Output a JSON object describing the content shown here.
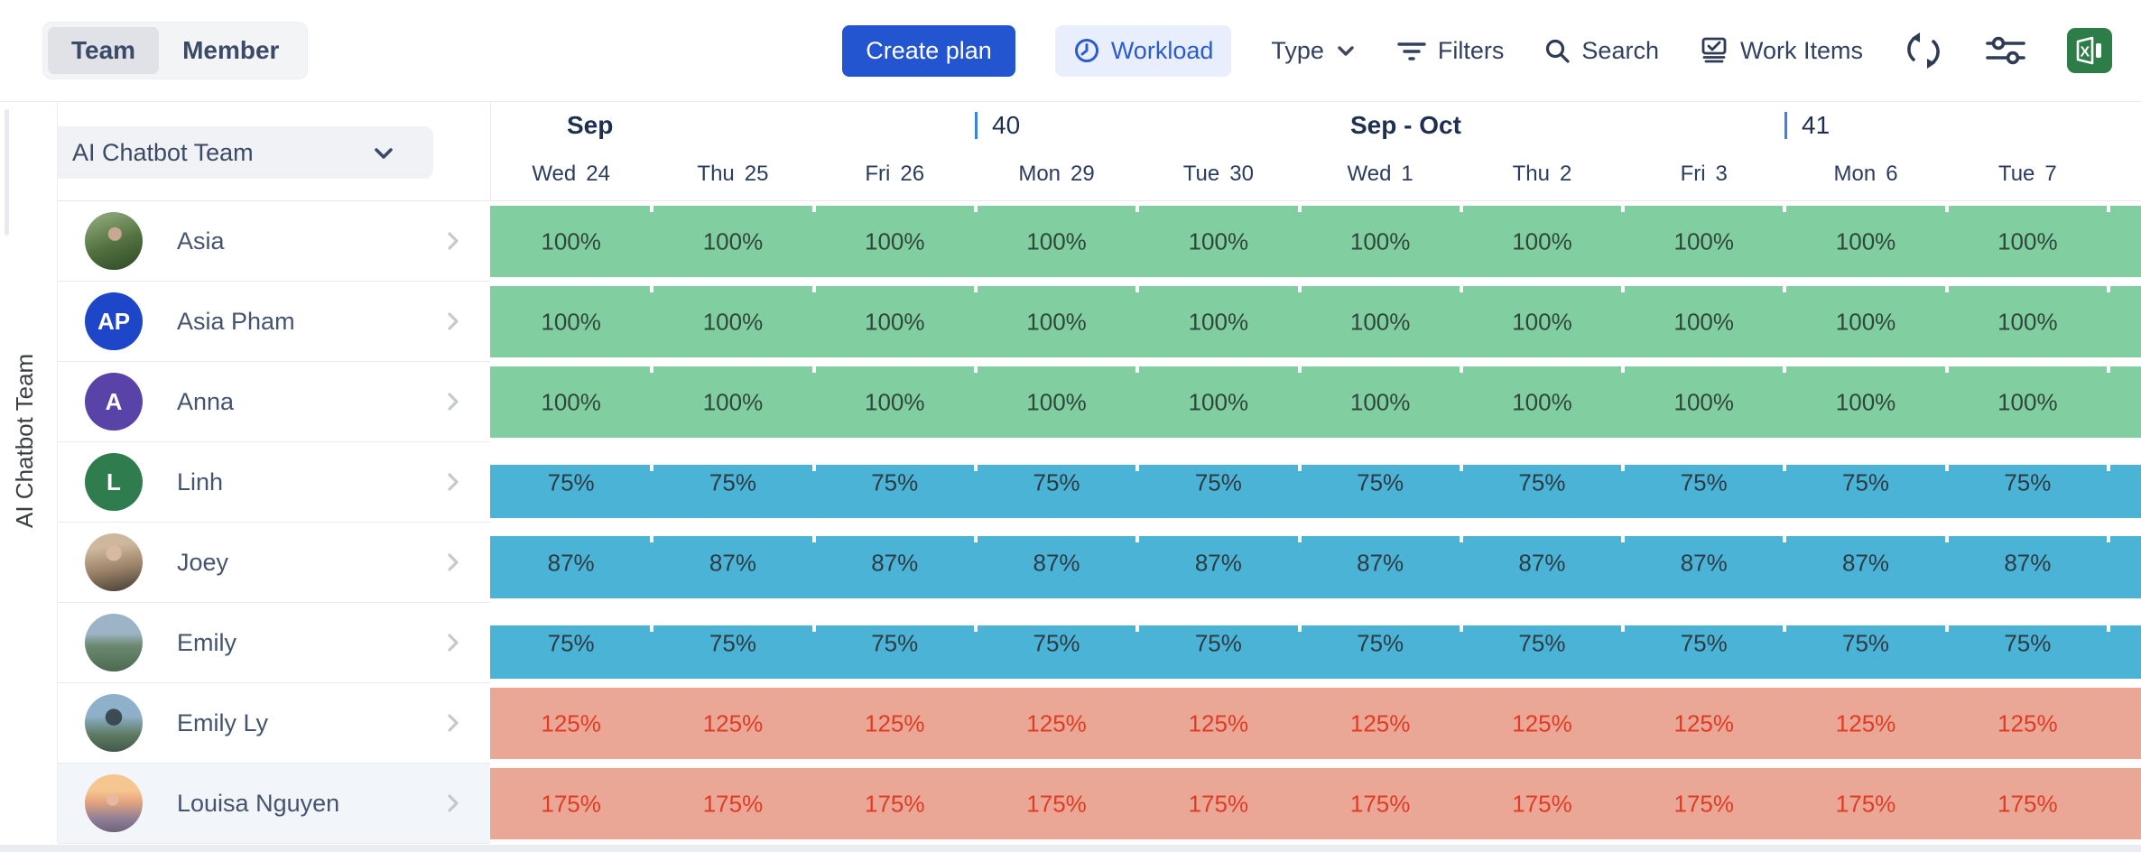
{
  "toolbar": {
    "view_toggle": {
      "team": "Team",
      "member": "Member",
      "selected": "Team"
    },
    "create_plan_label": "Create plan",
    "workload_label": "Workload",
    "type_label": "Type",
    "filters_label": "Filters",
    "search_label": "Search",
    "work_items_label": "Work Items",
    "icons": [
      "clock-icon",
      "chevron-down-icon",
      "filter-icon",
      "search-icon",
      "work-items-icon",
      "refresh-icon",
      "sliders-icon",
      "excel-icon"
    ]
  },
  "team_selector": {
    "label": "AI Chatbot Team"
  },
  "sidebar_vertical_label": "AI Chatbot Team",
  "timeline": {
    "months": [
      "Sep",
      "Sep - Oct"
    ],
    "weeks": [
      "40",
      "41"
    ],
    "days": [
      {
        "name": "Wed",
        "num": "24"
      },
      {
        "name": "Thu",
        "num": "25"
      },
      {
        "name": "Fri",
        "num": "26"
      },
      {
        "name": "Mon",
        "num": "29"
      },
      {
        "name": "Tue",
        "num": "30"
      },
      {
        "name": "Wed",
        "num": "1"
      },
      {
        "name": "Thu",
        "num": "2"
      },
      {
        "name": "Fri",
        "num": "3"
      },
      {
        "name": "Mon",
        "num": "6"
      },
      {
        "name": "Tue",
        "num": "7"
      }
    ]
  },
  "members": [
    {
      "name": "Asia",
      "avatar": "photo",
      "photo_key": "asia",
      "load_pct": 100,
      "cells": [
        "100%",
        "100%",
        "100%",
        "100%",
        "100%",
        "100%",
        "100%",
        "100%",
        "100%",
        "100%"
      ]
    },
    {
      "name": "Asia Pham",
      "avatar": "initials",
      "initials": "AP",
      "avatar_color": "#1d46c8",
      "load_pct": 100,
      "cells": [
        "100%",
        "100%",
        "100%",
        "100%",
        "100%",
        "100%",
        "100%",
        "100%",
        "100%",
        "100%"
      ]
    },
    {
      "name": "Anna",
      "avatar": "initials",
      "initials": "A",
      "avatar_color": "#5a43a8",
      "load_pct": 100,
      "cells": [
        "100%",
        "100%",
        "100%",
        "100%",
        "100%",
        "100%",
        "100%",
        "100%",
        "100%",
        "100%"
      ]
    },
    {
      "name": "Linh",
      "avatar": "initials",
      "initials": "L",
      "avatar_color": "#2f7d4f",
      "load_pct": 75,
      "cells": [
        "75%",
        "75%",
        "75%",
        "75%",
        "75%",
        "75%",
        "75%",
        "75%",
        "75%",
        "75%"
      ]
    },
    {
      "name": "Joey",
      "avatar": "photo",
      "photo_key": "joey",
      "load_pct": 87,
      "cells": [
        "87%",
        "87%",
        "87%",
        "87%",
        "87%",
        "87%",
        "87%",
        "87%",
        "87%",
        "87%"
      ]
    },
    {
      "name": "Emily",
      "avatar": "photo",
      "photo_key": "emily",
      "load_pct": 75,
      "cells": [
        "75%",
        "75%",
        "75%",
        "75%",
        "75%",
        "75%",
        "75%",
        "75%",
        "75%",
        "75%"
      ]
    },
    {
      "name": "Emily Ly",
      "avatar": "photo",
      "photo_key": "emilyly",
      "load_pct": 125,
      "cells": [
        "125%",
        "125%",
        "125%",
        "125%",
        "125%",
        "125%",
        "125%",
        "125%",
        "125%",
        "125%"
      ]
    },
    {
      "name": "Louisa Nguyen",
      "avatar": "photo",
      "photo_key": "louisa",
      "load_pct": 175,
      "highlighted": true,
      "cells": [
        "175%",
        "175%",
        "175%",
        "175%",
        "175%",
        "175%",
        "175%",
        "175%",
        "175%",
        "175%"
      ]
    }
  ],
  "colors": {
    "primary_button": "#2355d0",
    "workload_pill_bg": "#e8eefb",
    "workload_pill_text": "#2a5cd0",
    "bar_full_green": "#81cfa1",
    "bar_under_blue": "#4bb3d6",
    "bar_over_salmon": "#eba795",
    "bar_full_text": "#30463b",
    "bar_under_text": "#2c3b44",
    "bar_over_text": "#e03b25",
    "week_marker_blue": "#3b82e8",
    "excel_green": "#2e7d49"
  }
}
